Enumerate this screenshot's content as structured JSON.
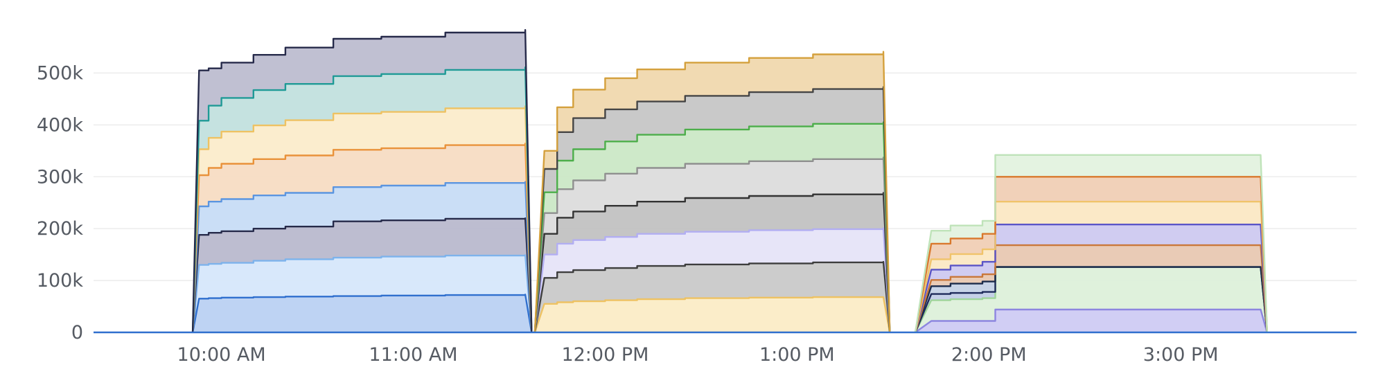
{
  "chart_data": {
    "type": "area",
    "stacked": true,
    "title": "",
    "xlabel": "",
    "ylabel": "",
    "ylim": [
      0,
      590000
    ],
    "xlim": [
      "09:20",
      "15:55"
    ],
    "grid": {
      "horizontal": true,
      "vertical": false
    },
    "legend": "none",
    "y_ticks": [
      {
        "value": 0,
        "label": "0"
      },
      {
        "value": 100000,
        "label": "100k"
      },
      {
        "value": 200000,
        "label": "200k"
      },
      {
        "value": 300000,
        "label": "300k"
      },
      {
        "value": 400000,
        "label": "400k"
      },
      {
        "value": 500000,
        "label": "500k"
      }
    ],
    "x_ticks": [
      {
        "time": "10:00",
        "label": "10:00 AM"
      },
      {
        "time": "11:00",
        "label": "11:00 AM"
      },
      {
        "time": "12:00",
        "label": "12:00 PM"
      },
      {
        "time": "13:00",
        "label": "1:00 PM"
      },
      {
        "time": "14:00",
        "label": "2:00 PM"
      },
      {
        "time": "15:00",
        "label": "3:00 PM"
      }
    ],
    "segments": [
      {
        "start": "09:51",
        "rise_end": "09:53",
        "end": "11:35",
        "fall_end": "11:37",
        "times": [
          "09:53",
          "09:56",
          "10:00",
          "10:10",
          "10:20",
          "10:35",
          "10:50",
          "11:10",
          "11:35"
        ],
        "layers": [
          {
            "color": "#2f6fce",
            "fill": "#bad1f2",
            "values": [
              65000,
              66000,
              67000,
              68000,
              69000,
              70000,
              71000,
              72000,
              73000
            ]
          },
          {
            "color": "#7db3ec",
            "fill": "#d6e7fb",
            "values": [
              65000,
              66000,
              67000,
              70000,
              72000,
              74000,
              75000,
              76000,
              76000
            ]
          },
          {
            "color": "#262a4a",
            "fill": "#b9b9cd",
            "values": [
              58000,
              60000,
              61000,
              62000,
              63000,
              70000,
              70000,
              71000,
              71000
            ]
          },
          {
            "color": "#5b95e0",
            "fill": "#c7dcf6",
            "values": [
              55000,
              60000,
              62000,
              64000,
              65000,
              66000,
              67000,
              69000,
              70000
            ]
          },
          {
            "color": "#e9923a",
            "fill": "#f7dcc3",
            "values": [
              60000,
              65000,
              68000,
              70000,
              72000,
              72000,
              72000,
              73000,
              74000
            ]
          },
          {
            "color": "#eec262",
            "fill": "#fbeccb",
            "values": [
              50000,
              58000,
              62000,
              65000,
              68000,
              70000,
              70000,
              71000,
              72000
            ]
          },
          {
            "color": "#1f9a96",
            "fill": "#c2e0de",
            "values": [
              55000,
              62000,
              65000,
              68000,
              70000,
              72000,
              73000,
              74000,
              75000
            ]
          },
          {
            "color": "#262a4a",
            "fill": "#bdbdd0",
            "values": [
              97000,
              72000,
              68000,
              68000,
              70000,
              72000,
              72000,
              72000,
              72000
            ]
          }
        ]
      },
      {
        "start": "11:38",
        "rise_end": "11:41",
        "end": "13:27",
        "fall_end": "13:29",
        "times": [
          "11:41",
          "11:45",
          "11:50",
          "12:00",
          "12:10",
          "12:25",
          "12:45",
          "13:05",
          "13:27"
        ],
        "layers": [
          {
            "color": "#eec262",
            "fill": "#fbecc6",
            "values": [
              55000,
              58000,
              60000,
              62000,
              64000,
              66000,
              67000,
              68000,
              68000
            ]
          },
          {
            "color": "#3d3d3d",
            "fill": "#c9c9c9",
            "values": [
              50000,
              58000,
              60000,
              62000,
              64000,
              65000,
              66000,
              67000,
              68000
            ]
          },
          {
            "color": "#b2aef2",
            "fill": "#e6e4f8",
            "values": [
              45000,
              55000,
              58000,
              60000,
              62000,
              63000,
              64000,
              64000,
              65000
            ]
          },
          {
            "color": "#333333",
            "fill": "#c2c2c2",
            "values": [
              40000,
              50000,
              55000,
              60000,
              62000,
              65000,
              66000,
              67000,
              68000
            ]
          },
          {
            "color": "#8f8f8f",
            "fill": "#dcdcdc",
            "values": [
              40000,
              55000,
              60000,
              62000,
              65000,
              66000,
              67000,
              68000,
              68000
            ]
          },
          {
            "color": "#4cae4a",
            "fill": "#cbe8c6",
            "values": [
              40000,
              55000,
              60000,
              62000,
              64000,
              66000,
              67000,
              68000,
              68000
            ]
          },
          {
            "color": "#454545",
            "fill": "#c6c6c6",
            "values": [
              45000,
              55000,
              60000,
              62000,
              64000,
              65000,
              66000,
              67000,
              68000
            ]
          },
          {
            "color": "#d4a03c",
            "fill": "#f0d8ae",
            "values": [
              35000,
              48000,
              55000,
              60000,
              62000,
              64000,
              66000,
              67000,
              68000
            ]
          }
        ]
      },
      {
        "start": "13:37",
        "rise_end": "13:42",
        "end": "15:25",
        "fall_end": "15:27",
        "times": [
          "13:42",
          "13:48",
          "13:58",
          "14:02",
          "14:30",
          "15:00",
          "15:25"
        ],
        "layers": [
          {
            "color": "#8d86e0",
            "fill": "#cfcbf3",
            "values": [
              22000,
              22000,
              22000,
              44000,
              44000,
              44000,
              44000
            ]
          },
          {
            "color": "#9fd49a",
            "fill": "#ddf0da",
            "values": [
              40000,
              42000,
              44000,
              82000,
              82000,
              82000,
              82000
            ]
          },
          {
            "color": "#1e2a5a",
            "fill": "#c2cde6",
            "values": [
              12000,
              12000,
              12000,
              0,
              0,
              0,
              0
            ]
          },
          {
            "color": "#1b2b4b",
            "fill": "#c5d2e6",
            "values": [
              15000,
              18000,
              20000,
              0,
              0,
              0,
              0
            ]
          },
          {
            "color": "#c9773a",
            "fill": "#e8c8b2",
            "values": [
              12000,
              13000,
              14000,
              42000,
              42000,
              42000,
              42000
            ]
          },
          {
            "color": "#5a54c6",
            "fill": "#cdc9f0",
            "values": [
              20000,
              22000,
              24000,
              40000,
              40000,
              40000,
              40000
            ]
          },
          {
            "color": "#f0c36a",
            "fill": "#fbe8c4",
            "values": [
              20000,
              22000,
              24000,
              44000,
              44000,
              44000,
              44000
            ]
          },
          {
            "color": "#d9782c",
            "fill": "#f0cfb5",
            "values": [
              30000,
              30000,
              30000,
              48000,
              48000,
              48000,
              48000
            ]
          },
          {
            "color": "#bfe3b9",
            "fill": "#e3f2df",
            "values": [
              25000,
              25000,
              25000,
              42000,
              42000,
              42000,
              42000
            ]
          }
        ]
      }
    ]
  }
}
